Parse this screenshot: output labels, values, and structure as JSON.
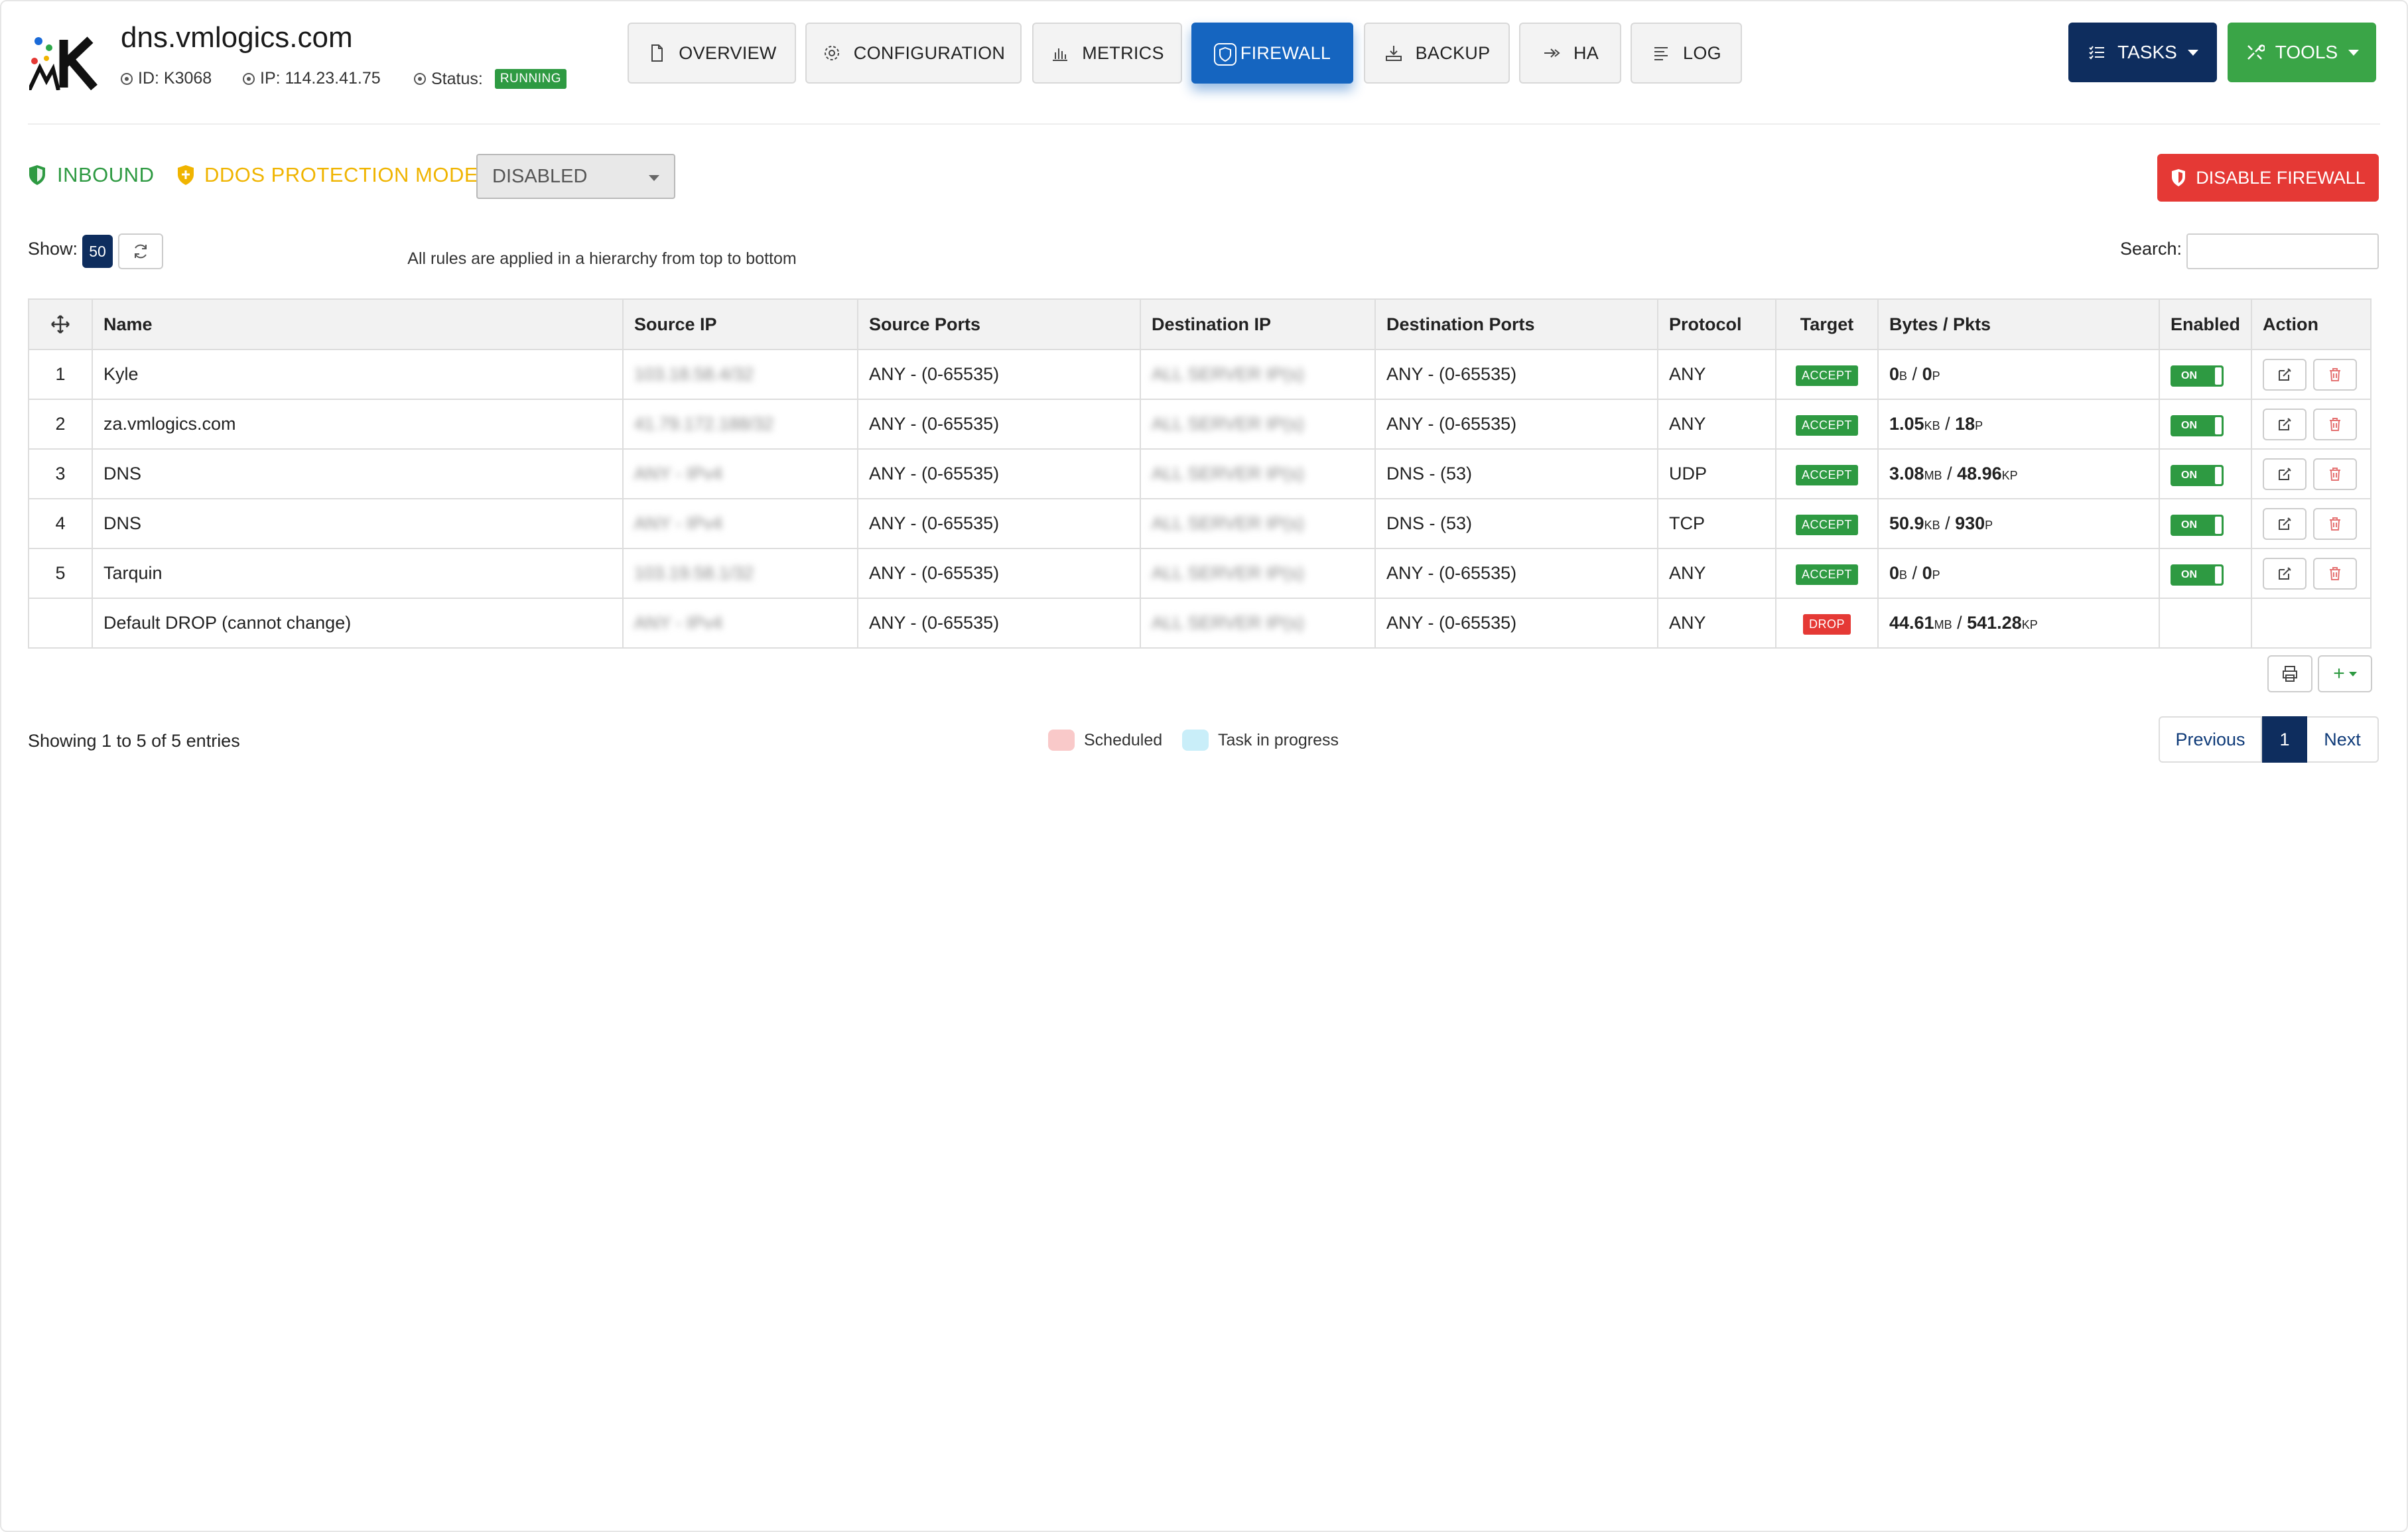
{
  "header": {
    "hostname": "dns.vmlogics.com",
    "id_label": "ID: K3068",
    "ip_label": "IP: 114.23.41.75",
    "status_label": "Status:",
    "status_value": "RUNNING"
  },
  "tabs": [
    {
      "label": "OVERVIEW",
      "icon": "document-icon"
    },
    {
      "label": "CONFIGURATION",
      "icon": "gear-icon"
    },
    {
      "label": "METRICS",
      "icon": "bar-chart-icon"
    },
    {
      "label": "FIREWALL",
      "icon": "shield-icon",
      "active": true
    },
    {
      "label": "BACKUP",
      "icon": "backup-icon"
    },
    {
      "label": "HA",
      "icon": "ha-icon"
    },
    {
      "label": "LOG",
      "icon": "list-icon"
    }
  ],
  "actions": {
    "tasks": "TASKS",
    "tools": "TOOLS"
  },
  "toolbar": {
    "inbound": "INBOUND",
    "ddos_label": "DDOS PROTECTION MODE:",
    "ddos_value": "DISABLED",
    "disable_firewall": "DISABLE FIREWALL",
    "show_label": "Show:",
    "show_value": "50",
    "hint": "All rules are applied in a hierarchy from top to bottom",
    "search_label": "Search:"
  },
  "table": {
    "columns": [
      "Name",
      "Source IP",
      "Source Ports",
      "Destination IP",
      "Destination Ports",
      "Protocol",
      "Target",
      "Bytes / Pkts",
      "Enabled",
      "Action"
    ],
    "rows": [
      {
        "num": "1",
        "name": "Kyle",
        "src_ip": "103.18.58.4/32",
        "src_ports": "ANY - (0-65535)",
        "dst_ip": "ALL SERVER IP(s)",
        "dst_ports": "ANY - (0-65535)",
        "protocol": "ANY",
        "target": "ACCEPT",
        "bytes": "0",
        "bytes_unit": "B",
        "pkts": "0",
        "pkts_unit": "P",
        "enabled": "ON"
      },
      {
        "num": "2",
        "name": "za.vmlogics.com",
        "src_ip": "41.79.172.188/32",
        "src_ports": "ANY - (0-65535)",
        "dst_ip": "ALL SERVER IP(s)",
        "dst_ports": "ANY - (0-65535)",
        "protocol": "ANY",
        "target": "ACCEPT",
        "bytes": "1.05",
        "bytes_unit": "KB",
        "pkts": "18",
        "pkts_unit": "P",
        "enabled": "ON"
      },
      {
        "num": "3",
        "name": "DNS",
        "src_ip": "ANY - IPv4",
        "src_ports": "ANY - (0-65535)",
        "dst_ip": "ALL SERVER IP(s)",
        "dst_ports": "DNS - (53)",
        "protocol": "UDP",
        "target": "ACCEPT",
        "bytes": "3.08",
        "bytes_unit": "MB",
        "pkts": "48.96",
        "pkts_unit": "KP",
        "enabled": "ON"
      },
      {
        "num": "4",
        "name": "DNS",
        "src_ip": "ANY - IPv4",
        "src_ports": "ANY - (0-65535)",
        "dst_ip": "ALL SERVER IP(s)",
        "dst_ports": "DNS - (53)",
        "protocol": "TCP",
        "target": "ACCEPT",
        "bytes": "50.9",
        "bytes_unit": "KB",
        "pkts": "930",
        "pkts_unit": "P",
        "enabled": "ON"
      },
      {
        "num": "5",
        "name": "Tarquin",
        "src_ip": "103.19.58.1/32",
        "src_ports": "ANY - (0-65535)",
        "dst_ip": "ALL SERVER IP(s)",
        "dst_ports": "ANY - (0-65535)",
        "protocol": "ANY",
        "target": "ACCEPT",
        "bytes": "0",
        "bytes_unit": "B",
        "pkts": "0",
        "pkts_unit": "P",
        "enabled": "ON"
      },
      {
        "num": "",
        "name": "Default DROP (cannot change)",
        "src_ip": "ANY - IPv4",
        "src_ports": "ANY - (0-65535)",
        "dst_ip": "ALL SERVER IP(s)",
        "dst_ports": "ANY - (0-65535)",
        "protocol": "ANY",
        "target": "DROP",
        "bytes": "44.61",
        "bytes_unit": "MB",
        "pkts": "541.28",
        "pkts_unit": "KP",
        "enabled": ""
      }
    ]
  },
  "footer": {
    "showing": "Showing 1 to 5 of 5 entries",
    "legend_scheduled": "Scheduled",
    "legend_task": "Task in progress",
    "prev": "Previous",
    "page": "1",
    "next": "Next"
  },
  "colors": {
    "accent_blue": "#1565c0",
    "navy": "#0e2d5e",
    "green": "#2e9a42",
    "red": "#e53935",
    "yellow": "#f0b400",
    "scheduled": "#f9c9c9",
    "in_progress": "#c9eef9"
  }
}
